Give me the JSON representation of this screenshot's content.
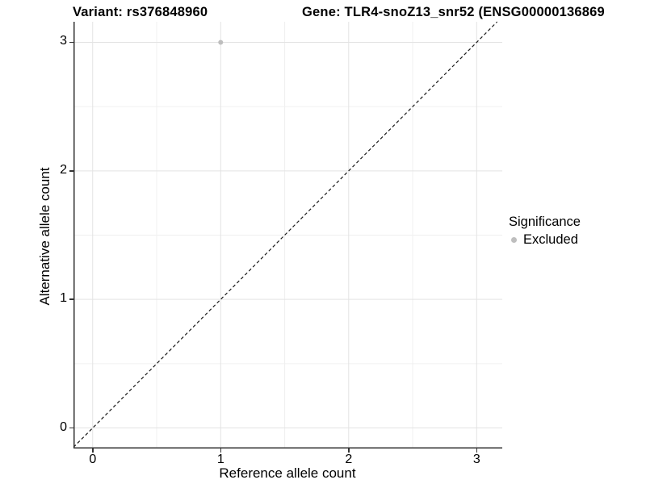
{
  "header": {
    "title_left": "Variant: rs376848960",
    "title_right": "Gene: TLR4-snoZ13_snr52 (ENSG00000136869"
  },
  "axes": {
    "x_title": "Reference allele count",
    "y_title": "Alternative allele count"
  },
  "legend": {
    "title": "Significance",
    "items": [
      {
        "label": "Excluded",
        "color": "#bebebe",
        "marker": "circle"
      }
    ]
  },
  "chart_data": {
    "type": "scatter",
    "title": "Variant: rs376848960 / Gene: TLR4-snoZ13_snr52 (ENSG00000136869",
    "xlabel": "Reference allele count",
    "ylabel": "Alternative allele count",
    "xlim": [
      -0.15,
      3.2
    ],
    "ylim": [
      -0.16,
      3.16
    ],
    "x_ticks": [
      0,
      1,
      2,
      3
    ],
    "y_ticks": [
      0,
      1,
      2,
      3
    ],
    "minor_x": [
      0.5,
      1.5,
      2.5
    ],
    "minor_y": [
      0.5,
      1.5,
      2.5
    ],
    "grid": true,
    "legend_position": "right",
    "series": [
      {
        "name": "Excluded",
        "points": [
          {
            "x": 1,
            "y": 3
          }
        ],
        "color": "#bebebe"
      }
    ],
    "reference_line": {
      "type": "identity",
      "style": "dashed",
      "from": -0.15,
      "to": 3.16,
      "color": "#1a1a1a"
    },
    "colors": {
      "point": "#bebebe",
      "grid_major": "#e3e3e3",
      "grid_minor": "#f0f0f0",
      "axis_line": "#333333",
      "text": "#000000"
    }
  }
}
